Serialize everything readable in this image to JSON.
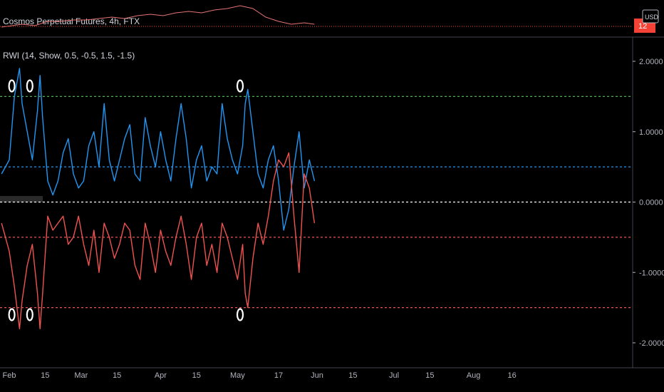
{
  "header": {
    "symbol_title": "Cosmos Perpetual Futures, 4h, FTX",
    "price_badge": "12",
    "currency": "USD"
  },
  "indicator": {
    "label": "RWI (14, Show, 0.5, -0.5, 1.5, -1.5)"
  },
  "colors": {
    "background": "#000000",
    "rwi_high": "#2196f3",
    "rwi_low": "#ef5350",
    "level_upper": "#4caf50",
    "level_mid": "#ffffff",
    "price_line": "#f44336",
    "marker": "#ffffff"
  },
  "chart_data": {
    "type": "line",
    "title": "RWI (14, Show, 0.5, -0.5, 1.5, -1.5)",
    "y_ticks": [
      "2.0000",
      "1.0000",
      "0.0000",
      "-1.0000",
      "-2.0000"
    ],
    "y_tick_values": [
      2,
      1,
      0,
      -1,
      -2
    ],
    "ylim": [
      -2.2,
      2.2
    ],
    "x_ticks": [
      "Feb",
      "15",
      "Mar",
      "15",
      "Apr",
      "15",
      "May",
      "17",
      "Jun",
      "15",
      "Jul",
      "15",
      "Aug",
      "16"
    ],
    "x_tick_days": [
      0,
      14,
      28,
      42,
      59,
      73,
      89,
      105,
      120,
      134,
      150,
      164,
      181,
      196
    ],
    "levels": [
      {
        "value": 1.5,
        "color": "#4caf50"
      },
      {
        "value": 0.5,
        "color": "#2196f3"
      },
      {
        "value": 0.0,
        "color": "#ffffff"
      },
      {
        "value": -0.5,
        "color": "#ef5350"
      },
      {
        "value": -1.5,
        "color": "#ef5350"
      }
    ],
    "series": [
      {
        "color": "#2196f3",
        "x_days": [
          -3,
          0,
          2,
          4,
          5,
          7,
          9,
          11,
          12,
          13,
          15,
          17,
          19,
          21,
          23,
          25,
          27,
          29,
          31,
          33,
          35,
          37,
          39,
          41,
          43,
          45,
          47,
          49,
          51,
          53,
          55,
          57,
          59,
          61,
          63,
          65,
          67,
          69,
          71,
          73,
          75,
          77,
          79,
          81,
          83,
          85,
          87,
          89,
          91,
          92,
          93,
          95,
          97,
          99,
          101,
          103,
          105,
          107,
          109,
          111,
          113,
          115,
          117,
          119
        ],
        "values": [
          0.4,
          0.6,
          1.5,
          1.9,
          1.4,
          1.0,
          0.6,
          1.3,
          1.8,
          1.2,
          0.3,
          0.1,
          0.3,
          0.7,
          0.9,
          0.4,
          0.2,
          0.3,
          0.8,
          1.0,
          0.5,
          1.4,
          0.6,
          0.3,
          0.6,
          0.9,
          1.1,
          0.4,
          0.3,
          1.2,
          0.8,
          0.5,
          1.0,
          0.6,
          0.3,
          0.9,
          1.4,
          0.9,
          0.2,
          0.6,
          0.8,
          0.3,
          0.5,
          0.4,
          1.4,
          0.9,
          0.6,
          0.4,
          0.8,
          1.4,
          1.6,
          1.0,
          0.4,
          0.2,
          0.6,
          0.8,
          0.3,
          -0.4,
          -0.1,
          0.5,
          1.0,
          0.2,
          0.6,
          0.3
        ]
      },
      {
        "color": "#ef5350",
        "x_days": [
          -3,
          0,
          2,
          4,
          5,
          7,
          9,
          11,
          12,
          13,
          15,
          17,
          19,
          21,
          23,
          25,
          27,
          29,
          31,
          33,
          35,
          37,
          39,
          41,
          43,
          45,
          47,
          49,
          51,
          53,
          55,
          57,
          59,
          61,
          63,
          65,
          67,
          69,
          71,
          73,
          75,
          77,
          79,
          81,
          83,
          85,
          87,
          89,
          91,
          92,
          93,
          95,
          97,
          99,
          101,
          103,
          105,
          107,
          109,
          111,
          113,
          115,
          117,
          119
        ],
        "values": [
          -0.3,
          -0.7,
          -1.2,
          -1.8,
          -1.4,
          -0.9,
          -0.6,
          -1.3,
          -1.8,
          -1.3,
          -0.2,
          -0.4,
          -0.3,
          -0.2,
          -0.6,
          -0.5,
          -0.2,
          -0.6,
          -0.9,
          -0.4,
          -1.0,
          -0.3,
          -0.5,
          -0.8,
          -0.6,
          -0.3,
          -0.4,
          -0.9,
          -1.1,
          -0.3,
          -0.6,
          -1.0,
          -0.4,
          -0.7,
          -0.9,
          -0.5,
          -0.2,
          -0.6,
          -1.1,
          -0.5,
          -0.3,
          -0.9,
          -0.6,
          -1.0,
          -0.3,
          -0.5,
          -0.8,
          -1.1,
          -0.6,
          -1.3,
          -1.5,
          -0.8,
          -0.3,
          -0.6,
          -0.2,
          0.3,
          0.6,
          0.5,
          0.7,
          -0.2,
          -1.0,
          0.4,
          0.2,
          -0.3
        ]
      }
    ],
    "markers": {
      "upper_days": [
        1,
        8,
        90
      ],
      "lower_days": [
        1,
        8,
        90
      ],
      "upper_value": 1.65,
      "lower_value": -1.6
    },
    "price_sparkline": {
      "x_days": [
        -3,
        5,
        10,
        15,
        20,
        25,
        30,
        35,
        40,
        45,
        50,
        55,
        60,
        65,
        70,
        75,
        80,
        85,
        90,
        95,
        100,
        105,
        110,
        115,
        119
      ],
      "values": [
        23,
        25,
        24,
        27,
        27,
        28,
        28,
        29,
        30,
        29,
        31,
        32,
        31,
        33,
        34,
        33,
        35,
        36,
        38,
        36,
        30,
        27,
        25,
        26,
        25
      ]
    }
  }
}
